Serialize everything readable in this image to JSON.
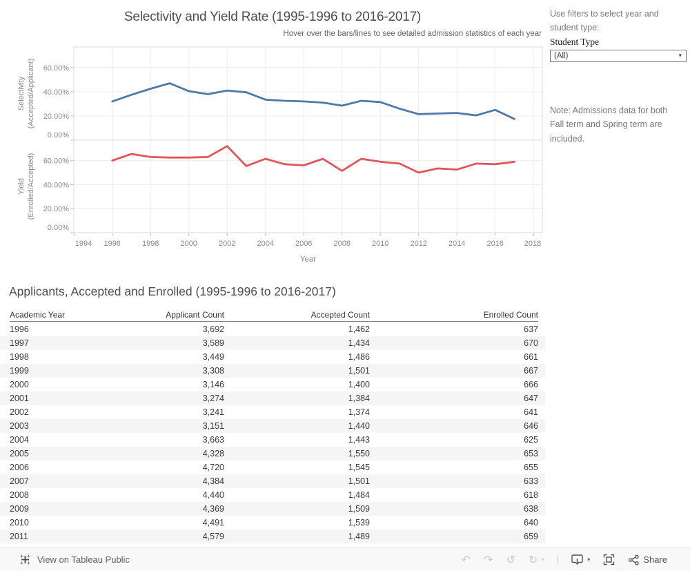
{
  "header": {
    "title": "Selectivity and Yield Rate (1995-1996 to 2016-2017)",
    "subtitle": "Hover over the bars/lines to see detailed admission statistics of each year"
  },
  "xaxis": {
    "label": "Year",
    "ticks": [
      {
        "year": 1994,
        "label": "1994"
      },
      {
        "year": 1996,
        "label": "1996"
      },
      {
        "year": 1998,
        "label": "1998"
      },
      {
        "year": 2000,
        "label": "2000"
      },
      {
        "year": 2002,
        "label": "2002"
      },
      {
        "year": 2004,
        "label": "2004"
      },
      {
        "year": 2006,
        "label": "2006"
      },
      {
        "year": 2008,
        "label": "2008"
      },
      {
        "year": 2010,
        "label": "2010"
      },
      {
        "year": 2012,
        "label": "2012"
      },
      {
        "year": 2014,
        "label": "2014"
      },
      {
        "year": 2016,
        "label": "2016"
      },
      {
        "year": 2018,
        "label": "2018"
      }
    ]
  },
  "chart_data": [
    {
      "type": "line",
      "title": "Selectivity",
      "ylabel": "Selectivity (Accepted/Applicant)",
      "ylabel_lines": [
        "Selectivity",
        "(Accepted/Applicant)"
      ],
      "xlabel": "Year",
      "color": "#4e79a7",
      "ylim": [
        0,
        77
      ],
      "grid": true,
      "legend": "none",
      "y_tick_values": [
        0,
        20,
        40,
        60
      ],
      "y_tick_labels": [
        "0.00%",
        "20.00%",
        "40.00%",
        "60.00%"
      ],
      "x": [
        1996,
        1997,
        1998,
        1999,
        2000,
        2001,
        2002,
        2003,
        2004,
        2005,
        2006,
        2007,
        2008,
        2009,
        2010,
        2011,
        2012,
        2013,
        2014,
        2015,
        2016,
        2017
      ],
      "series": [
        {
          "name": "selectivity-line",
          "values": [
            32,
            37.5,
            42.5,
            47,
            40.5,
            38,
            41,
            39.5,
            33.5,
            32.5,
            32,
            31,
            28.5,
            32.5,
            31.5,
            26,
            21.5,
            22,
            22.5,
            20.5,
            25,
            17.5
          ]
        }
      ]
    },
    {
      "type": "line",
      "title": "Yield",
      "ylabel": "Yield (Enrolled/Accepted)",
      "ylabel_lines": [
        "Yield",
        "(Enrolled/Accepted)"
      ],
      "xlabel": "Year",
      "color": "#e15759",
      "ylim": [
        0,
        77
      ],
      "grid": true,
      "legend": "none",
      "y_tick_values": [
        0,
        20,
        40,
        60
      ],
      "y_tick_labels": [
        "0.00%",
        "20.00%",
        "40.00%",
        "60.00%"
      ],
      "x": [
        1996,
        1997,
        1998,
        1999,
        2000,
        2001,
        2002,
        2003,
        2004,
        2005,
        2006,
        2007,
        2008,
        2009,
        2010,
        2011,
        2012,
        2013,
        2014,
        2015,
        2016,
        2017
      ],
      "series": [
        {
          "name": "yield-line",
          "values": [
            60,
            65.5,
            63,
            62.5,
            62.5,
            63,
            72,
            55.5,
            61.5,
            57,
            56,
            61.5,
            51.5,
            61.5,
            59,
            57.5,
            50,
            53.5,
            52.5,
            57.5,
            57,
            59
          ]
        }
      ]
    }
  ],
  "filter_panel": {
    "instructions": "Use filters to select year and student type:",
    "student_type_label": "Student Type",
    "student_type_value": "(All)",
    "dropdown_caret_icon": "▾",
    "note": "Note: Admissions data for both Fall term and Spring term  are included."
  },
  "table": {
    "title": "Applicants, Accepted and Enrolled (1995-1996 to 2016-2017)",
    "columns": [
      "Academic Year",
      "Applicant Count",
      "Accepted Count",
      "Enrolled Count"
    ],
    "rows": [
      [
        "1996",
        "3,692",
        "1,462",
        "637"
      ],
      [
        "1997",
        "3,589",
        "1,434",
        "670"
      ],
      [
        "1998",
        "3,449",
        "1,486",
        "661"
      ],
      [
        "1999",
        "3,308",
        "1,501",
        "667"
      ],
      [
        "2000",
        "3,146",
        "1,400",
        "666"
      ],
      [
        "2001",
        "3,274",
        "1,384",
        "647"
      ],
      [
        "2002",
        "3,241",
        "1,374",
        "641"
      ],
      [
        "2003",
        "3,151",
        "1,440",
        "646"
      ],
      [
        "2004",
        "3,663",
        "1,443",
        "625"
      ],
      [
        "2005",
        "4,328",
        "1,550",
        "653"
      ],
      [
        "2006",
        "4,720",
        "1,545",
        "655"
      ],
      [
        "2007",
        "4,384",
        "1,501",
        "633"
      ],
      [
        "2008",
        "4,440",
        "1,484",
        "618"
      ],
      [
        "2009",
        "4,369",
        "1,509",
        "638"
      ],
      [
        "2010",
        "4,491",
        "1,539",
        "640"
      ],
      [
        "2011",
        "4,579",
        "1,489",
        "659"
      ]
    ]
  },
  "toolbar": {
    "view_label": "View on Tableau Public",
    "share_label": "Share",
    "undo_icon": "↶",
    "redo_icon": "↷",
    "revert_icon": "↺",
    "refresh_icon": "↻",
    "caret_icon": "▾",
    "icons": [
      "tableau-logo-icon",
      "undo-icon",
      "redo-icon",
      "revert-icon",
      "refresh-icon",
      "download-icon",
      "fullscreen-icon",
      "share-icon"
    ]
  }
}
